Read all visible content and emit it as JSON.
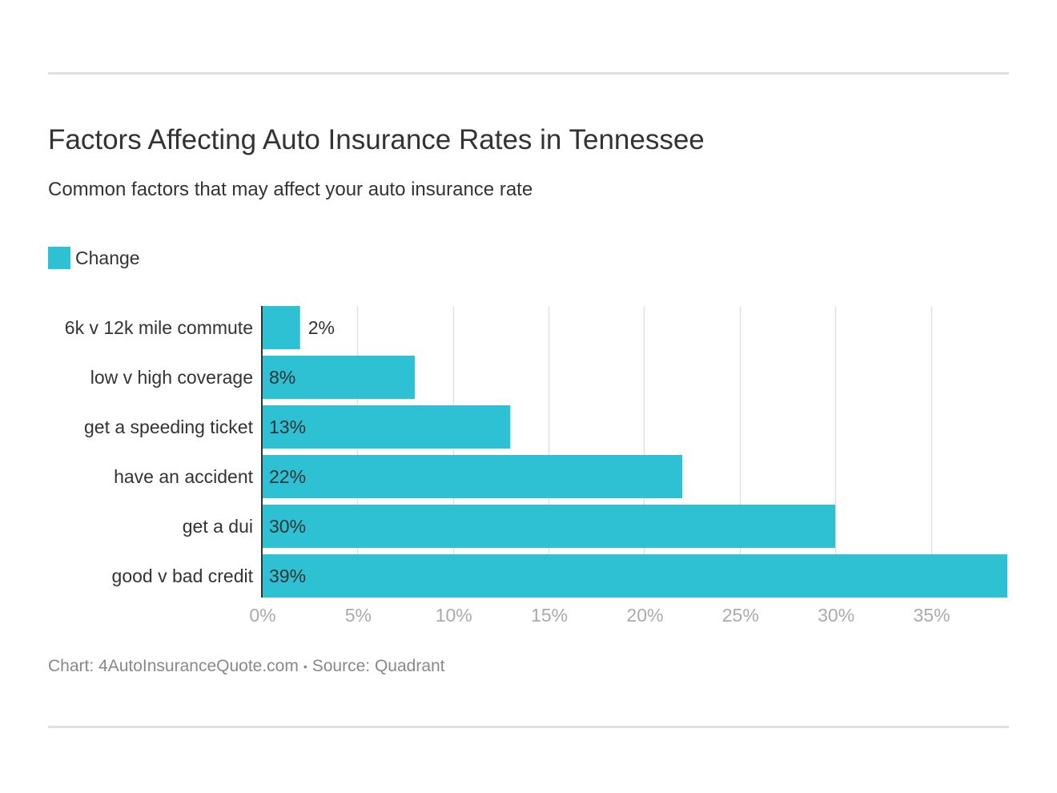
{
  "title": "Factors Affecting Auto Insurance Rates in Tennessee",
  "subtitle": "Common factors that may affect your auto insurance rate",
  "footer": {
    "chart_credit": "Chart: 4AutoInsuranceQuote.com",
    "separator": "•",
    "source": "Source: Quadrant"
  },
  "colors": {
    "bar": "#2ec0d3",
    "grid": "#e1e1e1",
    "axis": "#333333",
    "tick_label": "#aaaaaa",
    "text": "#333333"
  },
  "chart_data": {
    "type": "bar",
    "orientation": "horizontal",
    "categories": [
      "6k v 12k mile commute",
      "low v high coverage",
      "get a speeding ticket",
      "have an accident",
      "get a dui",
      "good v bad credit"
    ],
    "series": [
      {
        "name": "Change",
        "values": [
          2,
          8,
          13,
          22,
          30,
          39
        ]
      }
    ],
    "value_labels": [
      "2%",
      "8%",
      "13%",
      "22%",
      "30%",
      "39%"
    ],
    "xlim": [
      0,
      39
    ],
    "x_ticks": [
      0,
      5,
      10,
      15,
      20,
      25,
      30,
      35
    ],
    "x_tick_labels": [
      "0%",
      "5%",
      "10%",
      "15%",
      "20%",
      "25%",
      "30%",
      "35%"
    ],
    "legend_position": "top-left",
    "grid": true
  }
}
